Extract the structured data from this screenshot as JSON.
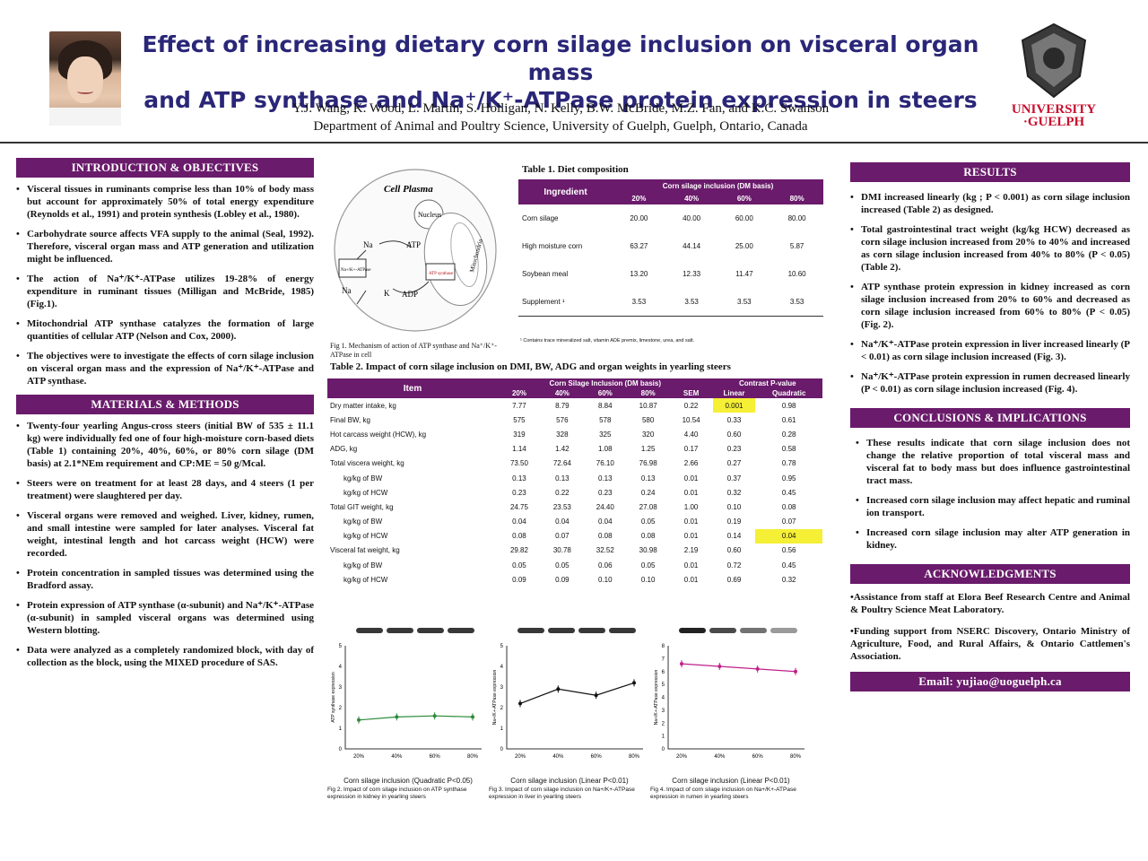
{
  "header": {
    "title_line1": "Effect of increasing dietary corn silage inclusion on visceral organ mass",
    "title_line2": "and ATP synthase and Na⁺/K⁺-ATPase protein expression in steers",
    "authors": "Y.J. Wang, K. Wood, L. Martin, S. Holligan, N. Kelly, B.W. McBride, M.Z. Fan, and K.C. Swanson",
    "department": "Department of Animal and Poultry Science, University of Guelph, Guelph, Ontario, Canada",
    "logo_line1": "UNIVERSITY",
    "logo_line2": "·GUELPH"
  },
  "intro": {
    "heading": "INTRODUCTION & OBJECTIVES",
    "bullets": [
      "Visceral tissues in ruminants comprise less than 10% of body mass but account for approximately 50% of total energy expenditure (Reynolds et al., 1991) and protein synthesis (Lobley et al., 1980).",
      "Carbohydrate source affects VFA supply to the animal (Seal, 1992). Therefore, visceral organ mass and ATP generation and utilization might be influenced.",
      "The action of Na⁺/K⁺-ATPase utilizes 19-28% of energy expenditure in ruminant tissues (Milligan and McBride, 1985) (Fig.1).",
      "Mitochondrial ATP synthase catalyzes the formation of large quantities of cellular ATP (Nelson and Cox, 2000).",
      "The objectives were to investigate the effects of corn silage inclusion on visceral organ mass and the expression of Na⁺/K⁺-ATPase and ATP synthase."
    ]
  },
  "methods": {
    "heading": "MATERIALS & METHODS",
    "bullets": [
      "Twenty-four yearling Angus-cross steers (initial BW of 535 ± 11.1 kg) were individually fed one of four high-moisture corn-based diets (Table 1) containing 20%, 40%, 60%, or 80% corn silage (DM basis) at 2.1*NEm requirement and CP:ME = 50 g/Mcal.",
      "Steers were on treatment for at least 28 days, and 4 steers (1 per treatment) were slaughtered per day.",
      "Visceral organs were removed and weighed. Liver, kidney, rumen, and small intestine were sampled for later analyses. Visceral fat weight, intestinal length and hot carcass weight (HCW) were recorded.",
      "Protein concentration in sampled tissues was determined using the Bradford assay.",
      "Protein expression of ATP synthase (α-subunit) and Na⁺/K⁺-ATPase (α-subunit) in sampled visceral organs was determined using Western blotting.",
      "Data were analyzed as a completely randomized block, with day of collection as the block, using the MIXED procedure of SAS."
    ]
  },
  "figure1": {
    "title": "Cell Plasma",
    "nucleus": "Nucleus",
    "na": "Na",
    "k": "K",
    "atp": "ATP",
    "adp": "ADP",
    "box1": "Na+/K+-ATPase",
    "box2": "ATP synthase",
    "mito": "Mitochondria",
    "caption": "Fig 1. Mechanism of action of ATP synthase and Na⁺/K⁺- ATPase in cell"
  },
  "table1": {
    "caption": "Table 1.  Diet composition",
    "group_header": "Corn silage inclusion (DM basis)",
    "row_header": "Ingredient",
    "columns": [
      "20%",
      "40%",
      "60%",
      "80%"
    ],
    "rows": [
      {
        "label": "Corn silage",
        "values": [
          "20.00",
          "40.00",
          "60.00",
          "80.00"
        ]
      },
      {
        "label": "High moisture corn",
        "values": [
          "63.27",
          "44.14",
          "25.00",
          "5.87"
        ]
      },
      {
        "label": "Soybean meal",
        "values": [
          "13.20",
          "12.33",
          "11.47",
          "10.60"
        ]
      },
      {
        "label": "Supplement ¹",
        "values": [
          "3.53",
          "3.53",
          "3.53",
          "3.53"
        ]
      }
    ],
    "footnote": "¹ Contains trace mineralized salt, vitamin ADE premix, limestone, urea, and salt."
  },
  "table2": {
    "caption": "Table 2. Impact of corn silage inclusion on DMI, BW, ADG and organ weights in yearling steers",
    "item_header": "Item",
    "group1": "Corn Silage Inclusion (DM basis)",
    "group2": "Contrast P-value",
    "columns": [
      "20%",
      "40%",
      "60%",
      "80%",
      "SEM",
      "Linear",
      "Quadratic"
    ],
    "rows": [
      {
        "label": "Dry matter intake, kg",
        "sub": false,
        "values": [
          "7.77",
          "8.79",
          "8.84",
          "10.87",
          "0.22",
          "0.001",
          "0.98"
        ]
      },
      {
        "label": "Final BW, kg",
        "sub": false,
        "values": [
          "575",
          "576",
          "578",
          "580",
          "10.54",
          "0.33",
          "0.61"
        ]
      },
      {
        "label": "Hot carcass weight (HCW), kg",
        "sub": false,
        "values": [
          "319",
          "328",
          "325",
          "320",
          "4.40",
          "0.60",
          "0.28"
        ]
      },
      {
        "label": "ADG, kg",
        "sub": false,
        "values": [
          "1.14",
          "1.42",
          "1.08",
          "1.25",
          "0.17",
          "0.23",
          "0.58"
        ]
      },
      {
        "label": "Total viscera weight, kg",
        "sub": false,
        "values": [
          "73.50",
          "72.64",
          "76.10",
          "76.98",
          "2.66",
          "0.27",
          "0.78"
        ]
      },
      {
        "label": "kg/kg of BW",
        "sub": true,
        "values": [
          "0.13",
          "0.13",
          "0.13",
          "0.13",
          "0.01",
          "0.37",
          "0.95"
        ]
      },
      {
        "label": "kg/kg of HCW",
        "sub": true,
        "values": [
          "0.23",
          "0.22",
          "0.23",
          "0.24",
          "0.01",
          "0.32",
          "0.45"
        ]
      },
      {
        "label": "Total GIT weight, kg",
        "sub": false,
        "values": [
          "24.75",
          "23.53",
          "24.40",
          "27.08",
          "1.00",
          "0.10",
          "0.08"
        ]
      },
      {
        "label": "kg/kg of BW",
        "sub": true,
        "values": [
          "0.04",
          "0.04",
          "0.04",
          "0.05",
          "0.01",
          "0.19",
          "0.07"
        ]
      },
      {
        "label": "kg/kg of HCW",
        "sub": true,
        "values": [
          "0.08",
          "0.07",
          "0.08",
          "0.08",
          "0.01",
          "0.14",
          "0.04"
        ]
      },
      {
        "label": "Visceral fat weight, kg",
        "sub": false,
        "values": [
          "29.82",
          "30.78",
          "32.52",
          "30.98",
          "2.19",
          "0.60",
          "0.56"
        ]
      },
      {
        "label": "kg/kg of BW",
        "sub": true,
        "values": [
          "0.05",
          "0.05",
          "0.06",
          "0.05",
          "0.01",
          "0.72",
          "0.45"
        ]
      },
      {
        "label": "kg/kg of HCW",
        "sub": true,
        "values": [
          "0.09",
          "0.09",
          "0.10",
          "0.10",
          "0.01",
          "0.69",
          "0.32"
        ]
      }
    ],
    "highlights": [
      [
        0,
        5
      ],
      [
        9,
        6
      ]
    ]
  },
  "figures": [
    {
      "xtitle": "Corn silage inclusion (Quadratic P<0.05)",
      "ylabel": "ATP synthase expression",
      "caption": "Fig 2. Impact of corn silage inclusion on ATP synthase expression in kidney in yearling steers"
    },
    {
      "xtitle": "Corn silage inclusion (Linear P<0.01)",
      "ylabel": "Na+/K+-ATPase expression",
      "caption": "Fig 3. Impact of corn silage inclusion on Na+/K+-ATPase expression in liver in yearling steers"
    },
    {
      "xtitle": "Corn silage inclusion (Linear P<0.01)",
      "ylabel": "Na+/K+-ATPase expression",
      "caption": "Fig 4. Impact of corn silage inclusion on Na+/K+-ATPase expression in rumen in yearling steers"
    }
  ],
  "chart_data": [
    {
      "type": "line",
      "categories": [
        "20%",
        "40%",
        "60%",
        "80%"
      ],
      "values": [
        1.4,
        1.55,
        1.6,
        1.55
      ],
      "color": "#2e8b3a",
      "ylim": [
        0,
        5
      ],
      "yticks": [
        "0",
        "1",
        "2",
        "3",
        "4",
        "5"
      ]
    },
    {
      "type": "line",
      "categories": [
        "20%",
        "40%",
        "60%",
        "80%"
      ],
      "values": [
        2.2,
        2.9,
        2.6,
        3.2
      ],
      "color": "#111111",
      "ylim": [
        0,
        5
      ],
      "yticks": [
        "0",
        "1",
        "2",
        "3",
        "4",
        "5"
      ]
    },
    {
      "type": "line",
      "categories": [
        "20%",
        "40%",
        "60%",
        "80%"
      ],
      "values": [
        6.6,
        6.4,
        6.2,
        6.0
      ],
      "color": "#c0208a",
      "ylim": [
        0,
        8
      ],
      "yticks": [
        "0",
        "1",
        "2",
        "3",
        "4",
        "5",
        "6",
        "7",
        "8"
      ]
    }
  ],
  "results": {
    "heading": "RESULTS",
    "bullets": [
      "DMI increased linearly (kg ; P < 0.001) as corn silage inclusion increased (Table 2) as designed.",
      "Total gastrointestinal tract weight (kg/kg HCW) decreased as corn silage inclusion increased from 20% to 40% and increased as corn silage inclusion increased from 40% to 80% (P < 0.05) (Table 2).",
      "ATP synthase protein expression in kidney increased as corn silage inclusion increased from 20% to 60% and decreased as corn silage inclusion increased from 60% to 80% (P < 0.05) (Fig. 2).",
      "Na⁺/K⁺-ATPase protein expression in liver increased linearly (P < 0.01) as corn silage inclusion increased (Fig. 3).",
      "Na⁺/K⁺-ATPase protein expression in rumen decreased linearly (P < 0.01) as corn silage inclusion increased (Fig. 4)."
    ]
  },
  "conclusions": {
    "heading": "CONCLUSIONS & IMPLICATIONS",
    "bullets": [
      "These results indicate that corn silage inclusion does not change the relative proportion of total visceral mass and visceral fat to body mass but does influence gastrointestinal tract mass.",
      "Increased corn silage inclusion may affect hepatic and ruminal ion transport.",
      "Increased corn silage inclusion may alter ATP generation in kidney."
    ]
  },
  "acknowledgments": {
    "heading": "ACKNOWLEDGMENTS",
    "items": [
      "•Assistance from staff at Elora Beef Research Centre and Animal & Poultry Science Meat Laboratory.",
      "•Funding support from NSERC Discovery, Ontario Ministry of Agriculture, Food, and Rural Affairs, & Ontario Cattlemen's Association."
    ]
  },
  "email": "Email: yujiao@uoguelph.ca"
}
